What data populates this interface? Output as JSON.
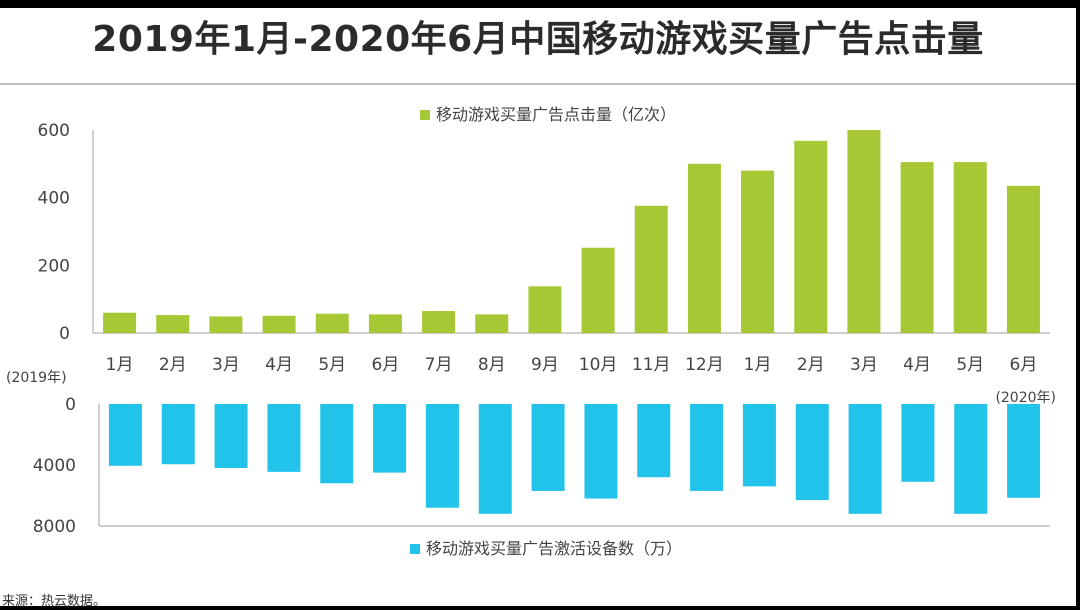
{
  "title": "2019年1月-2020年6月中国移动游戏买量广告点击量",
  "source": "来源：热云数据。",
  "colors": {
    "clicks": "#a6c834",
    "activations": "#22c3ea",
    "axis": "#b0b0b0"
  },
  "chart_data": [
    {
      "type": "bar",
      "categories": [
        "1月",
        "2月",
        "3月",
        "4月",
        "5月",
        "6月",
        "7月",
        "8月",
        "9月",
        "10月",
        "11月",
        "12月",
        "1月",
        "2月",
        "3月",
        "4月",
        "5月",
        "6月"
      ],
      "series": [
        {
          "name": "移动游戏买量广告点击量（亿次）",
          "values": [
            60,
            53,
            49,
            51,
            57,
            55,
            65,
            55,
            138,
            252,
            376,
            500,
            480,
            568,
            600,
            505,
            505,
            435
          ]
        }
      ],
      "ylim": [
        0,
        600
      ],
      "yticks": [
        0,
        200,
        400,
        600
      ],
      "legend": "top-center",
      "annotations": [
        "(2019年)",
        "(2020年)"
      ]
    },
    {
      "type": "bar",
      "orientation": "downward",
      "categories": [
        "1月",
        "2月",
        "3月",
        "4月",
        "5月",
        "6月",
        "7月",
        "8月",
        "9月",
        "10月",
        "11月",
        "12月",
        "1月",
        "2月",
        "3月",
        "4月",
        "5月",
        "6月"
      ],
      "series": [
        {
          "name": "移动游戏买量广告激活设备数（万）",
          "values": [
            4050,
            3950,
            4200,
            4450,
            5200,
            4500,
            6800,
            7200,
            5700,
            6200,
            4800,
            5700,
            5400,
            6300,
            7200,
            5100,
            7200,
            6150
          ]
        }
      ],
      "ylim": [
        0,
        8000
      ],
      "yticks": [
        0,
        4000,
        8000
      ],
      "legend": "bottom-center"
    }
  ]
}
